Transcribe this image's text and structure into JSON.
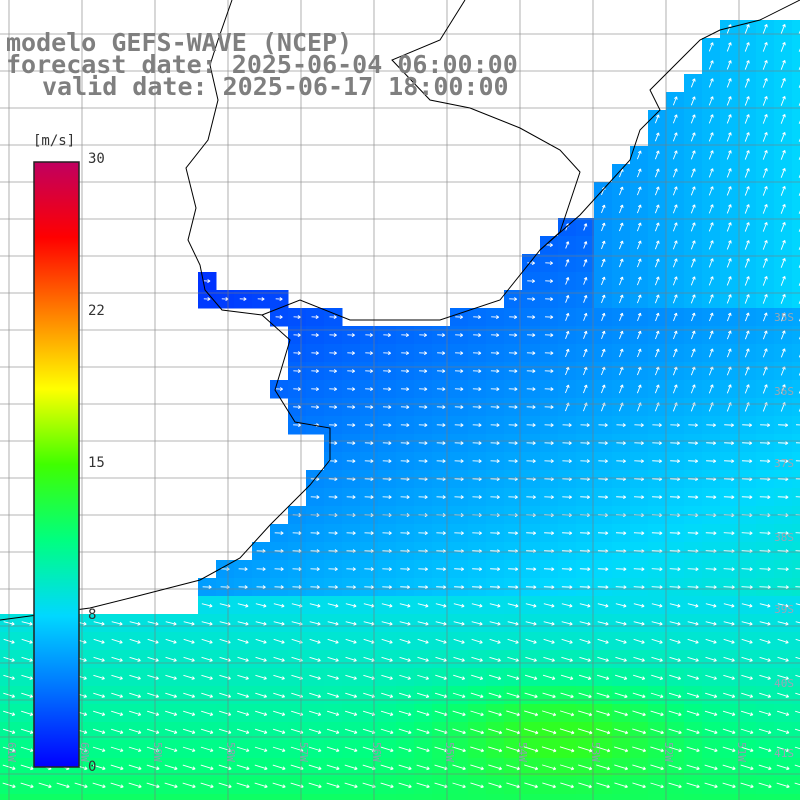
{
  "header": {
    "model": "modelo GEFS-WAVE (NCEP)",
    "forecast": "forecast date: 2025-06-04 06:00:00",
    "valid": "valid date: 2025-06-17 18:00:00"
  },
  "colorbar": {
    "unit": "[m/s]",
    "ticks": [
      {
        "value": 30,
        "label": "30"
      },
      {
        "value": 22,
        "label": "22"
      },
      {
        "value": 15,
        "label": "15"
      },
      {
        "value": 8,
        "label": "8"
      },
      {
        "value": 0,
        "label": "0"
      }
    ],
    "range": [
      0,
      30
    ],
    "stops": [
      "#0000ff",
      "#0070ff",
      "#00d8ff",
      "#00ff80",
      "#40ff00",
      "#ffff00",
      "#ff8000",
      "#ff0000",
      "#c00060"
    ]
  },
  "lat_labels": [
    "35S",
    "36S",
    "37S",
    "38S",
    "39S",
    "40S",
    "41S"
  ],
  "lon_labels": [
    "61W",
    "60W",
    "59W",
    "58W",
    "57W",
    "56W",
    "55W",
    "54W",
    "53W",
    "52W",
    "51W"
  ],
  "colors": {
    "land": "#ffffff",
    "coast": "#000000",
    "grid": "#7a7a7a",
    "arrow": "#ffffff"
  }
}
